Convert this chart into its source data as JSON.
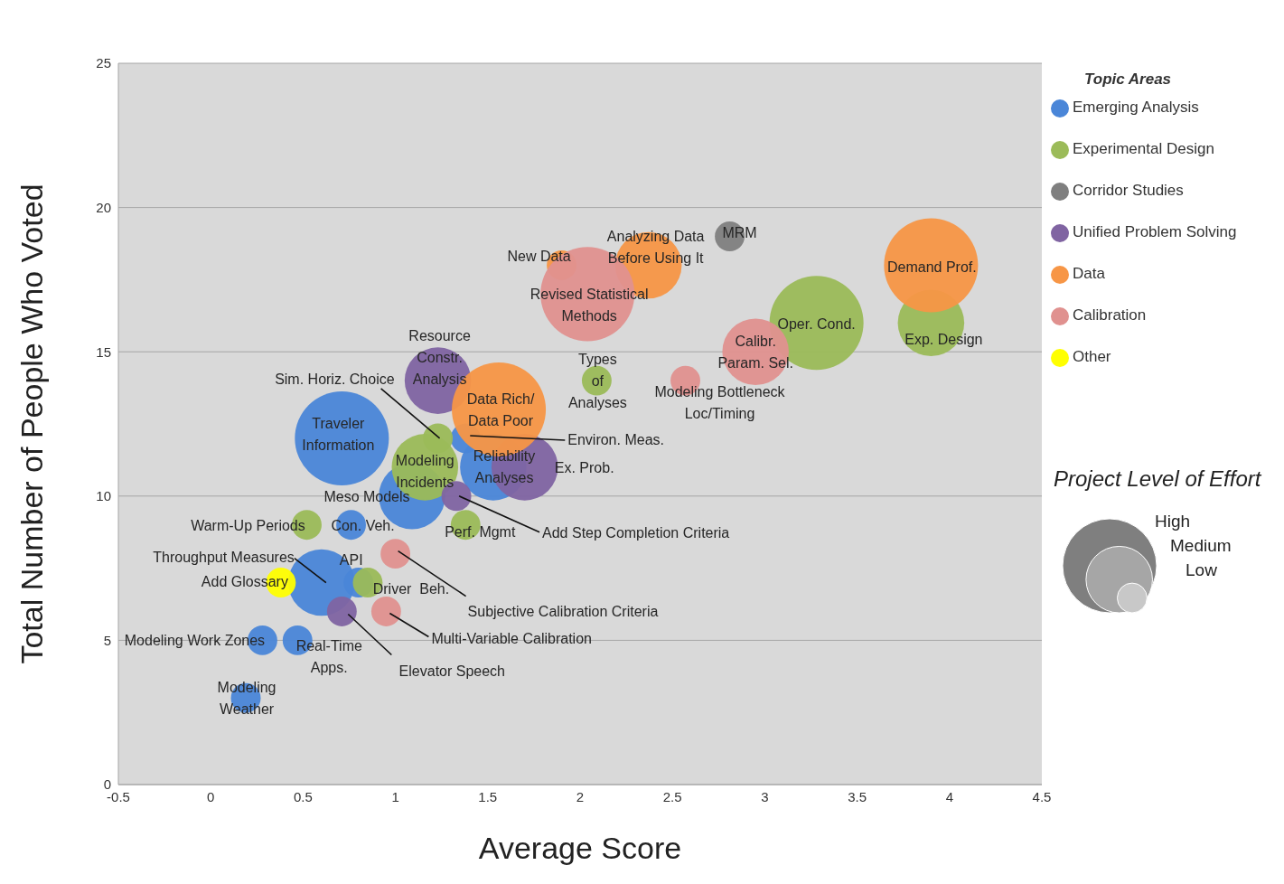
{
  "chart_data": {
    "type": "bubble",
    "xlabel": "Average Score",
    "ylabel": "Total Number of People Who Voted",
    "legend_title": "Topic Areas",
    "legend": "right",
    "grid": "y",
    "xlim": [
      -0.5,
      4.5
    ],
    "xticks": [
      -0.5,
      0,
      0.5,
      1,
      1.5,
      2,
      2.5,
      3,
      3.5,
      4,
      4.5
    ],
    "ylim": [
      0,
      25
    ],
    "yticks": [
      0,
      5,
      10,
      15,
      20,
      25
    ],
    "relative": false,
    "size_legend": [
      {
        "value": 1,
        "label": "High"
      },
      {
        "value": 0.5,
        "label": "Medium"
      },
      {
        "value": 0.1,
        "label": "Low"
      }
    ],
    "series": [
      {
        "name": "Emerging Analysis",
        "color": "#4a86d8",
        "x": [
          0.71,
          1.09,
          1.53,
          1.38,
          0.76,
          0.6,
          0.8,
          0.28,
          0.47,
          0.19
        ],
        "values": [
          12,
          10,
          11,
          12,
          9,
          7,
          7,
          5,
          5,
          3
        ],
        "sizes": [
          1,
          0.5,
          0.5,
          0.1,
          0.1,
          0.5,
          0.1,
          0.1,
          0.1,
          0.1
        ]
      },
      {
        "name": "Experimental Design",
        "color": "#9bbb59",
        "x": [
          3.28,
          3.9,
          2.09,
          1.23,
          1.16,
          0.52,
          1.38,
          0.85
        ],
        "values": [
          16,
          16,
          14,
          12,
          11,
          9,
          9,
          7
        ],
        "sizes": [
          1,
          0.5,
          0.1,
          0.1,
          0.5,
          0.1,
          0.1,
          0.1
        ]
      },
      {
        "name": "Corridor Studies",
        "color": "#7f7f7f",
        "x": [
          2.81
        ],
        "values": [
          19
        ],
        "sizes": [
          0.1
        ]
      },
      {
        "name": "Unified Problem Solving",
        "color": "#8064a2",
        "x": [
          1.23,
          1.7,
          1.33,
          0.71
        ],
        "values": [
          14,
          11,
          10,
          6
        ],
        "sizes": [
          0.5,
          0.5,
          0.1,
          0.1
        ]
      },
      {
        "name": "Data",
        "color": "#f79646",
        "x": [
          3.9,
          2.37,
          1.9,
          1.56
        ],
        "values": [
          18,
          18,
          18,
          13
        ],
        "sizes": [
          1,
          0.5,
          0.1,
          1
        ]
      },
      {
        "name": "Calibration",
        "color": "#e0918f",
        "x": [
          2.04,
          2.95,
          2.57,
          1.0,
          0.95
        ],
        "values": [
          17,
          15,
          14,
          8,
          6
        ],
        "sizes": [
          1,
          0.5,
          0.1,
          0.1,
          0.1
        ]
      },
      {
        "name": "Other",
        "color": "#ffff00",
        "x": [
          0.38
        ],
        "values": [
          7
        ],
        "sizes": [
          0.1
        ]
      }
    ],
    "annotations": [
      {
        "text": "Traveler\nInformation",
        "x": 0.71,
        "y": 12
      },
      {
        "text": "Meso Models",
        "x": 1.09,
        "y": 10
      },
      {
        "text": "Reliability\nAnalyses",
        "x": 1.53,
        "y": 11
      },
      {
        "text": "Environ. Meas.",
        "x": 1.38,
        "y": 12
      },
      {
        "text": "Con. Veh.",
        "x": 0.76,
        "y": 9
      },
      {
        "text": "Throughput Measures",
        "x": 0.6,
        "y": 7
      },
      {
        "text": "API",
        "x": 0.8,
        "y": 7
      },
      {
        "text": "Modeling Work Zones",
        "x": 0.28,
        "y": 5
      },
      {
        "text": "Real-Time\nApps.",
        "x": 0.47,
        "y": 5
      },
      {
        "text": "Modeling\nWeather",
        "x": 0.19,
        "y": 3
      },
      {
        "text": "Oper. Cond.",
        "x": 3.28,
        "y": 16
      },
      {
        "text": "Exp. Design",
        "x": 3.9,
        "y": 16
      },
      {
        "text": "Types\nof\nAnalyses",
        "x": 2.09,
        "y": 14
      },
      {
        "text": "Sim. Horiz. Choice",
        "x": 1.23,
        "y": 12
      },
      {
        "text": "Modeling\nIncidents",
        "x": 1.16,
        "y": 11
      },
      {
        "text": "Warm-Up Periods",
        "x": 0.52,
        "y": 9
      },
      {
        "text": "Perf. Mgmt",
        "x": 1.38,
        "y": 9
      },
      {
        "text": "Driver  Beh.",
        "x": 0.85,
        "y": 7
      },
      {
        "text": "MRM",
        "x": 2.81,
        "y": 19
      },
      {
        "text": "Resource\nConstr.\nAnalysis",
        "x": 1.23,
        "y": 14
      },
      {
        "text": "Ex. Prob.",
        "x": 1.7,
        "y": 11
      },
      {
        "text": "Add Step Completion Criteria",
        "x": 1.33,
        "y": 10
      },
      {
        "text": "Elevator Speech",
        "x": 0.71,
        "y": 6
      },
      {
        "text": "Demand Prof.",
        "x": 3.9,
        "y": 18
      },
      {
        "text": "Analyzing Data\nBefore Using It",
        "x": 2.37,
        "y": 18
      },
      {
        "text": "New Data",
        "x": 1.9,
        "y": 18
      },
      {
        "text": "Data Rich/\nData Poor",
        "x": 1.56,
        "y": 13
      },
      {
        "text": "Revised Statistical\nMethods",
        "x": 2.04,
        "y": 17
      },
      {
        "text": "Calibr.\nParam. Sel.",
        "x": 2.95,
        "y": 15
      },
      {
        "text": "Modeling Bottleneck\nLoc/Timing",
        "x": 2.57,
        "y": 14
      },
      {
        "text": "Subjective Calibration Criteria",
        "x": 1.0,
        "y": 8
      },
      {
        "text": "Multi-Variable Calibration",
        "x": 0.95,
        "y": 6
      },
      {
        "text": "Add Glossary",
        "x": 0.38,
        "y": 7
      },
      "Project Level of Effort"
    ]
  }
}
